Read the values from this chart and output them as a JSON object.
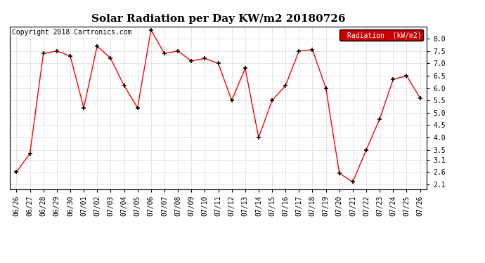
{
  "title": "Solar Radiation per Day KW/m2 20180726",
  "copyright": "Copyright 2018 Cartronics.com",
  "legend_label": "Radiation  (kW/m2)",
  "x_labels": [
    "06/26",
    "06/27",
    "06/28",
    "06/29",
    "06/30",
    "07/01",
    "07/02",
    "07/03",
    "07/04",
    "07/05",
    "07/06",
    "07/07",
    "07/08",
    "07/09",
    "07/10",
    "07/11",
    "07/12",
    "07/13",
    "07/14",
    "07/15",
    "07/16",
    "07/17",
    "07/18",
    "07/19",
    "07/20",
    "07/21",
    "07/22",
    "07/23",
    "07/24",
    "07/25",
    "07/26"
  ],
  "y_values": [
    2.6,
    3.35,
    7.4,
    7.5,
    7.3,
    5.2,
    7.7,
    7.2,
    6.1,
    5.2,
    8.35,
    7.4,
    7.5,
    7.1,
    7.2,
    7.0,
    5.5,
    6.8,
    4.0,
    5.5,
    6.1,
    7.5,
    7.55,
    6.0,
    2.55,
    2.2,
    3.5,
    4.75,
    6.35,
    6.5,
    5.6
  ],
  "ylim_min": 1.9,
  "ylim_max": 8.5,
  "yticks": [
    2.1,
    2.6,
    3.1,
    3.5,
    4.0,
    4.5,
    5.0,
    5.5,
    6.0,
    6.5,
    7.0,
    7.5,
    8.0
  ],
  "line_color": "red",
  "marker_color": "black",
  "bg_color": "#ffffff",
  "grid_color": "#cccccc",
  "title_fontsize": 11,
  "tick_fontsize": 7,
  "copyright_fontsize": 7,
  "legend_bg": "#cc0000",
  "legend_text_color": "#ffffff"
}
